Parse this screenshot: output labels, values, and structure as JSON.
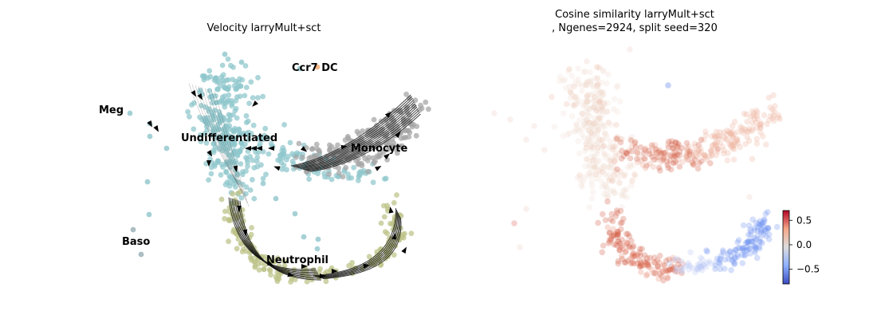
{
  "chart_data": [
    {
      "type": "scatter",
      "title": "Velocity larryMult+sct",
      "xlabel": "",
      "ylabel": "",
      "axes_visible": false,
      "legend": "on data",
      "overlay": "streamlines with arrowheads (RNA velocity)",
      "clusters": [
        {
          "name": "Meg",
          "color": "#8ec6cc"
        },
        {
          "name": "Ccr7 DC",
          "color": "#f2a66b"
        },
        {
          "name": "Undifferentiated",
          "color": "#8ec6cc"
        },
        {
          "name": "Monocyte",
          "color": "#a3a3a3"
        },
        {
          "name": "Baso",
          "color": "#96aeb4"
        },
        {
          "name": "Neutrophil",
          "color": "#bcc286"
        }
      ]
    },
    {
      "type": "scatter",
      "title_lines": [
        "Cosine similarity larryMult+sct",
        ", Ngenes=2924, split seed=320"
      ],
      "axes_visible": false,
      "colormap": "coolwarm",
      "colorbar": {
        "ticks": [
          0.5,
          0.0,
          -0.5
        ],
        "tick_labels": [
          "0.5",
          "0.0",
          "−0.5"
        ],
        "range": [
          -0.8,
          0.7
        ]
      },
      "color_notes": {
        "positive": "#d2553c",
        "neutral": "#f2ddd4",
        "negative": "#6a8ef0"
      }
    }
  ]
}
